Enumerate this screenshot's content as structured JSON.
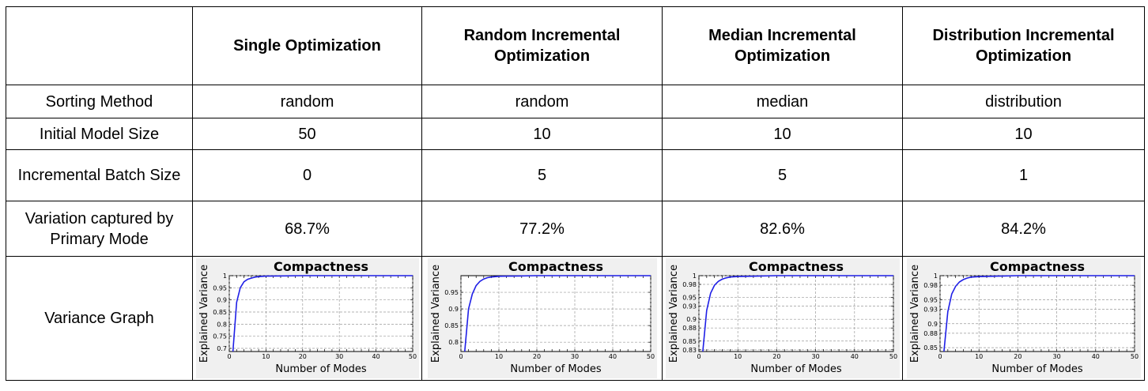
{
  "table": {
    "headers": [
      "",
      "Single Optimization",
      "Random Incremental Optimization",
      "Median Incremental Optimization",
      "Distribution Incremental Optimization"
    ],
    "rows": [
      {
        "label": "Sorting Method",
        "values": [
          "random",
          "random",
          "median",
          "distribution"
        ]
      },
      {
        "label": "Initial Model Size",
        "values": [
          "50",
          "10",
          "10",
          "10"
        ]
      },
      {
        "label": "Incremental Batch Size",
        "values": [
          "0",
          "5",
          "5",
          "1"
        ]
      },
      {
        "label": "Variation captured by Primary Mode",
        "values": [
          "68.7%",
          "77.2%",
          "82.6%",
          "84.2%"
        ]
      },
      {
        "label": "Variance Graph"
      }
    ]
  },
  "chart_data": [
    {
      "type": "line",
      "title": "Compactness",
      "xlabel": "Number of Modes",
      "ylabel": "Explained Variance",
      "xlim": [
        0,
        50
      ],
      "ylim": [
        0.687,
        1.0
      ],
      "xticks": [
        0,
        10,
        20,
        30,
        40,
        50
      ],
      "yticks": [
        "0.7",
        "0.75",
        "0.8",
        "0.85",
        "0.9",
        "0.95",
        "1"
      ],
      "ytick_values": [
        0.7,
        0.75,
        0.8,
        0.85,
        0.9,
        0.95,
        1.0
      ],
      "grid": true,
      "color": "#1f1fe6",
      "x": [
        1,
        2,
        3,
        4,
        5,
        6,
        7,
        8,
        10,
        15,
        20,
        30,
        40,
        50
      ],
      "y": [
        0.687,
        0.89,
        0.95,
        0.975,
        0.985,
        0.99,
        0.994,
        0.996,
        0.998,
        0.999,
        1.0,
        1.0,
        1.0,
        1.0
      ]
    },
    {
      "type": "line",
      "title": "Compactness",
      "xlabel": "Number of Modes",
      "ylabel": "Explained Variance",
      "xlim": [
        0,
        50
      ],
      "ylim": [
        0.772,
        1.0
      ],
      "xticks": [
        0,
        10,
        20,
        30,
        40,
        50
      ],
      "yticks": [
        "0.8",
        "0.85",
        "0.9",
        "0.95"
      ],
      "ytick_values": [
        0.8,
        0.85,
        0.9,
        0.95
      ],
      "grid": true,
      "color": "#1f1fe6",
      "x": [
        1,
        2,
        3,
        4,
        5,
        6,
        7,
        8,
        10,
        15,
        20,
        30,
        40,
        50
      ],
      "y": [
        0.772,
        0.9,
        0.945,
        0.97,
        0.983,
        0.99,
        0.994,
        0.996,
        0.998,
        0.999,
        1.0,
        1.0,
        1.0,
        1.0
      ]
    },
    {
      "type": "line",
      "title": "Compactness",
      "xlabel": "Number of Modes",
      "ylabel": "Explained Variance",
      "xlim": [
        0,
        50
      ],
      "ylim": [
        0.826,
        1.0
      ],
      "xticks": [
        0,
        10,
        20,
        30,
        40,
        50
      ],
      "yticks": [
        "0.83",
        "0.85",
        "0.88",
        "0.9",
        "0.93",
        "0.95",
        "0.98",
        "1"
      ],
      "ytick_values": [
        0.83,
        0.85,
        0.88,
        0.9,
        0.93,
        0.95,
        0.98,
        1.0
      ],
      "grid": true,
      "color": "#1f1fe6",
      "x": [
        1,
        2,
        3,
        4,
        5,
        6,
        7,
        8,
        10,
        15,
        20,
        30,
        40,
        50
      ],
      "y": [
        0.826,
        0.92,
        0.96,
        0.978,
        0.987,
        0.992,
        0.995,
        0.997,
        0.998,
        0.999,
        1.0,
        1.0,
        1.0,
        1.0
      ]
    },
    {
      "type": "line",
      "title": "Compactness",
      "xlabel": "Number of Modes",
      "ylabel": "Explained Variance",
      "xlim": [
        0,
        50
      ],
      "ylim": [
        0.842,
        1.0
      ],
      "xticks": [
        0,
        10,
        20,
        30,
        40,
        50
      ],
      "yticks": [
        "0.85",
        "0.88",
        "0.9",
        "0.93",
        "0.95",
        "0.98",
        "1"
      ],
      "ytick_values": [
        0.85,
        0.88,
        0.9,
        0.93,
        0.95,
        0.98,
        1.0
      ],
      "grid": true,
      "color": "#1f1fe6",
      "x": [
        1,
        2,
        3,
        4,
        5,
        6,
        7,
        8,
        10,
        15,
        20,
        30,
        40,
        50
      ],
      "y": [
        0.842,
        0.925,
        0.962,
        0.978,
        0.987,
        0.992,
        0.995,
        0.997,
        0.998,
        0.999,
        1.0,
        1.0,
        1.0,
        1.0
      ]
    }
  ]
}
